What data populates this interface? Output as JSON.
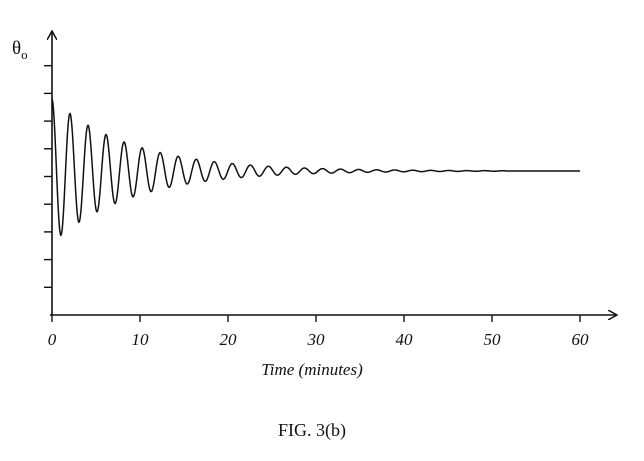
{
  "chart_data": {
    "type": "line",
    "title": "",
    "caption": "FIG. 3(b)",
    "xlabel": "Time (minutes)",
    "ylabel": "θ",
    "ylabel_sub": "o",
    "xlim": [
      0,
      60
    ],
    "ylim": [
      0,
      10
    ],
    "x_ticks": [
      0,
      10,
      20,
      30,
      40,
      50,
      60
    ],
    "x_tick_labels": [
      "0",
      "10",
      "20",
      "30",
      "40",
      "50",
      "60"
    ],
    "y_ticks": [
      1,
      2,
      3,
      4,
      5,
      6,
      7,
      8,
      9
    ],
    "y_tick_labels": [],
    "grid": false,
    "series": [
      {
        "name": "θo response",
        "model": "damped oscillation",
        "steady_value": 5.2,
        "initial_amplitude": 2.6,
        "period_minutes": 2.05,
        "decay_time_constant_minutes": 9,
        "oscillation_ends_minutes": 51.5,
        "x_end": 60,
        "color": "#111111"
      }
    ]
  }
}
